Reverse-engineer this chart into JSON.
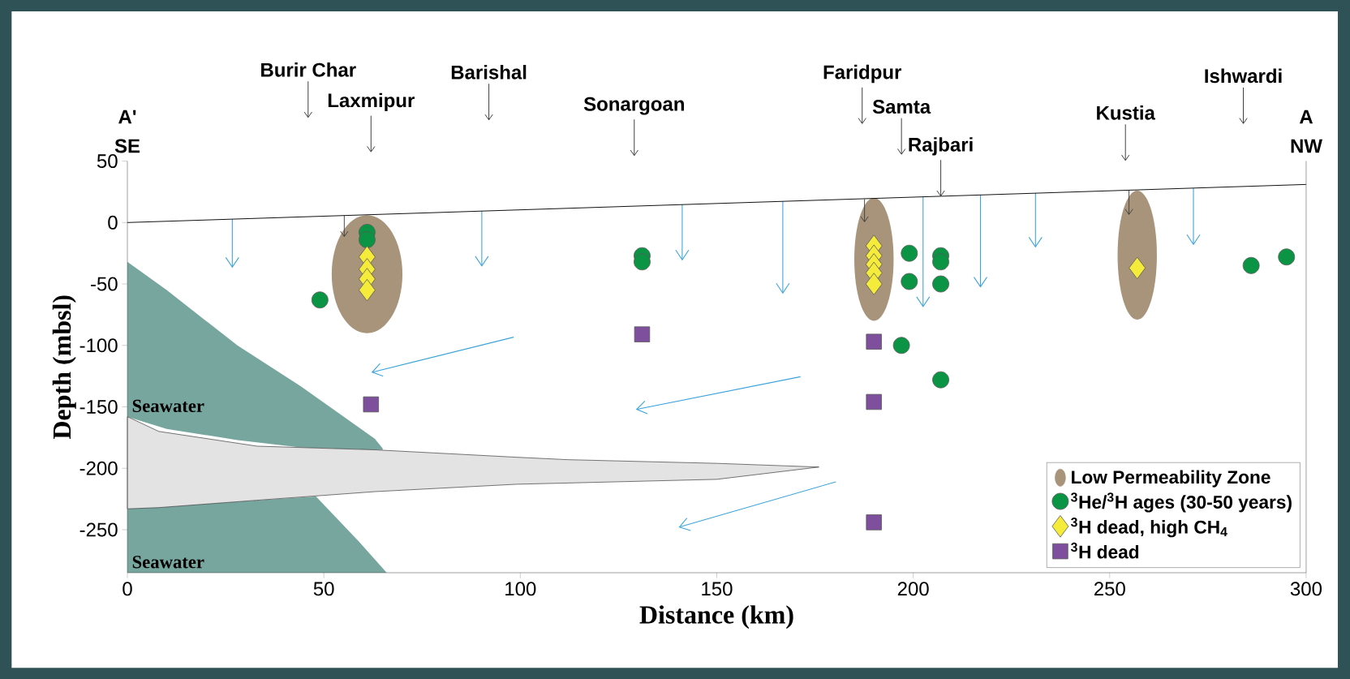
{
  "chart_data": {
    "type": "scatter",
    "xlabel": "Distance (km)",
    "ylabel": "Depth (mbsl)",
    "xlim": [
      0,
      300
    ],
    "ylim": [
      -285,
      50
    ],
    "xticks": [
      0,
      50,
      100,
      150,
      200,
      250,
      300
    ],
    "yticks": [
      50,
      0,
      -50,
      -100,
      -150,
      -200,
      -250
    ],
    "grid": false,
    "legend": "bottom right",
    "series": [
      {
        "type": "line",
        "color": "#000000",
        "x": [
          0,
          300
        ],
        "values": [
          0,
          31
        ]
      },
      {
        "name": "$^{3}$He/$^{3}$H ages (30-50 years)",
        "type": "scatter",
        "marker": "circle",
        "color": "#0b9444",
        "x": [
          61,
          61,
          49,
          131,
          131,
          199,
          199,
          207,
          207,
          207,
          197,
          207,
          286,
          295
        ],
        "values": [
          -8,
          -14,
          -63,
          -27,
          -32,
          -25,
          -48,
          -27,
          -32,
          -50,
          -100,
          -128,
          -35,
          -28
        ]
      },
      {
        "name": "$^{3}$H dead, high CH$_{4}$",
        "type": "scatter",
        "marker": "diamond",
        "color": "#f5eb3b",
        "x": [
          61,
          61,
          61,
          61,
          190,
          190,
          190,
          190,
          190,
          257
        ],
        "values": [
          -28,
          -38,
          -46,
          -55,
          -19,
          -27,
          -34,
          -41,
          -50,
          -37
        ]
      },
      {
        "name": "$^{3}$H dead",
        "type": "scatter",
        "marker": "square",
        "color": "#7e4f9c",
        "x": [
          62,
          131,
          190,
          190,
          190
        ],
        "values": [
          -148,
          -91,
          -97,
          -146,
          -244
        ]
      }
    ],
    "annotations": [
      "Burir Char",
      "Laxmipur",
      "Barishal",
      "Sonargoan",
      "Faridpur",
      "Samta",
      {
        "text": "Rajbari",
        "x": 207,
        "y": 21
      },
      "Kustia",
      "Ishwardi",
      "A'",
      "SE",
      "A",
      "NW",
      "Seawater",
      "Seawater",
      "Low Permeability Zone"
    ]
  }
}
